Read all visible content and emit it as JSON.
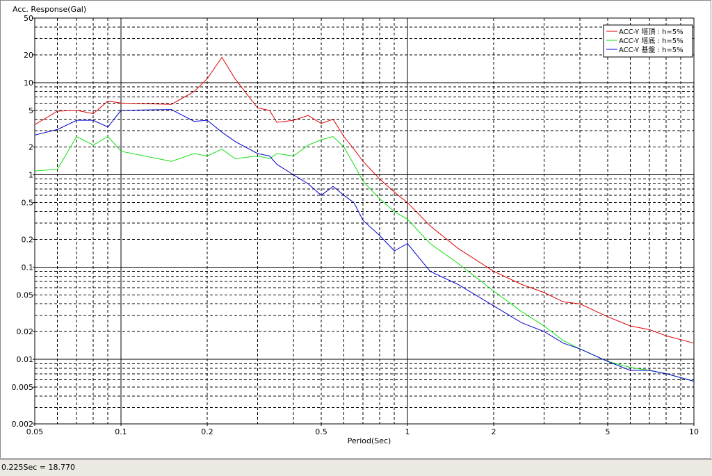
{
  "chart_data": {
    "type": "line",
    "title": "Acc. Response(Gal)",
    "x_label": "Period(Sec)",
    "log_x": true,
    "log_y": true,
    "legend": "upper right",
    "xlim": [
      0.05,
      10
    ],
    "ylim": [
      0.002,
      50
    ],
    "xticks": [
      0.05,
      0.1,
      0.2,
      0.5,
      1,
      2,
      5,
      10
    ],
    "yticks": [
      50,
      20,
      10,
      5,
      2,
      1,
      0.5,
      0.2,
      0.1,
      0.05,
      0.02,
      0.01,
      0.005,
      0.002
    ],
    "xgrid": [
      0.06,
      0.07,
      0.08,
      0.09,
      0.1,
      0.2,
      0.3,
      0.4,
      0.5,
      0.6,
      0.7,
      0.8,
      0.9,
      1,
      2,
      3,
      4,
      5,
      6,
      7,
      8,
      9
    ],
    "ygrid": [
      0.003,
      0.004,
      0.005,
      0.006,
      0.007,
      0.008,
      0.009,
      0.01,
      0.02,
      0.03,
      0.04,
      0.05,
      0.06,
      0.07,
      0.08,
      0.09,
      0.1,
      0.2,
      0.3,
      0.4,
      0.5,
      0.6,
      0.7,
      0.8,
      0.9,
      1,
      2,
      3,
      4,
      5,
      6,
      7,
      8,
      9,
      10,
      20,
      30,
      40
    ],
    "x": [
      0.05,
      0.06,
      0.07,
      0.08,
      0.09,
      0.1,
      0.15,
      0.18,
      0.2,
      0.225,
      0.25,
      0.3,
      0.33,
      0.35,
      0.4,
      0.45,
      0.5,
      0.55,
      0.6,
      0.65,
      0.7,
      0.8,
      0.9,
      1,
      1.2,
      1.5,
      2,
      2.5,
      3,
      3.5,
      4,
      5,
      6,
      7,
      8,
      10
    ],
    "series": [
      {
        "name": "ACC-Y 塔頂 : h=5%",
        "color": "#e00000",
        "values": [
          3.5,
          4.9,
          5.0,
          4.6,
          6.3,
          6.0,
          5.8,
          8,
          11,
          18.77,
          11,
          5.3,
          5.0,
          3.7,
          3.9,
          4.4,
          3.6,
          4.0,
          2.6,
          1.9,
          1.4,
          0.9,
          0.65,
          0.5,
          0.28,
          0.16,
          0.09,
          0.065,
          0.053,
          0.042,
          0.04,
          0.029,
          0.023,
          0.021,
          0.018,
          0.015
        ]
      },
      {
        "name": "ACC-Y 塔底 : h=5%",
        "color": "#10e010",
        "values": [
          1.1,
          1.15,
          2.6,
          2.1,
          2.6,
          1.8,
          1.4,
          1.7,
          1.6,
          1.9,
          1.5,
          1.6,
          1.5,
          1.7,
          1.6,
          2.1,
          2.4,
          2.6,
          2.0,
          1.3,
          0.85,
          0.55,
          0.4,
          0.33,
          0.18,
          0.11,
          0.055,
          0.033,
          0.023,
          0.016,
          0.013,
          0.0095,
          0.0082,
          0.0076,
          0.007,
          0.0058
        ]
      },
      {
        "name": "ACC-Y 基盤 : h=5%",
        "color": "#0000d0",
        "values": [
          2.7,
          3.1,
          3.9,
          3.9,
          3.3,
          5.0,
          5.1,
          3.8,
          3.9,
          2.9,
          2.3,
          1.7,
          1.6,
          1.3,
          1.0,
          0.8,
          0.6,
          0.75,
          0.6,
          0.5,
          0.32,
          0.22,
          0.15,
          0.18,
          0.09,
          0.065,
          0.038,
          0.025,
          0.02,
          0.015,
          0.013,
          0.0095,
          0.0076,
          0.0076,
          0.007,
          0.0058
        ]
      }
    ]
  },
  "status_bar": {
    "text": "0.225Sec = 18.770"
  }
}
